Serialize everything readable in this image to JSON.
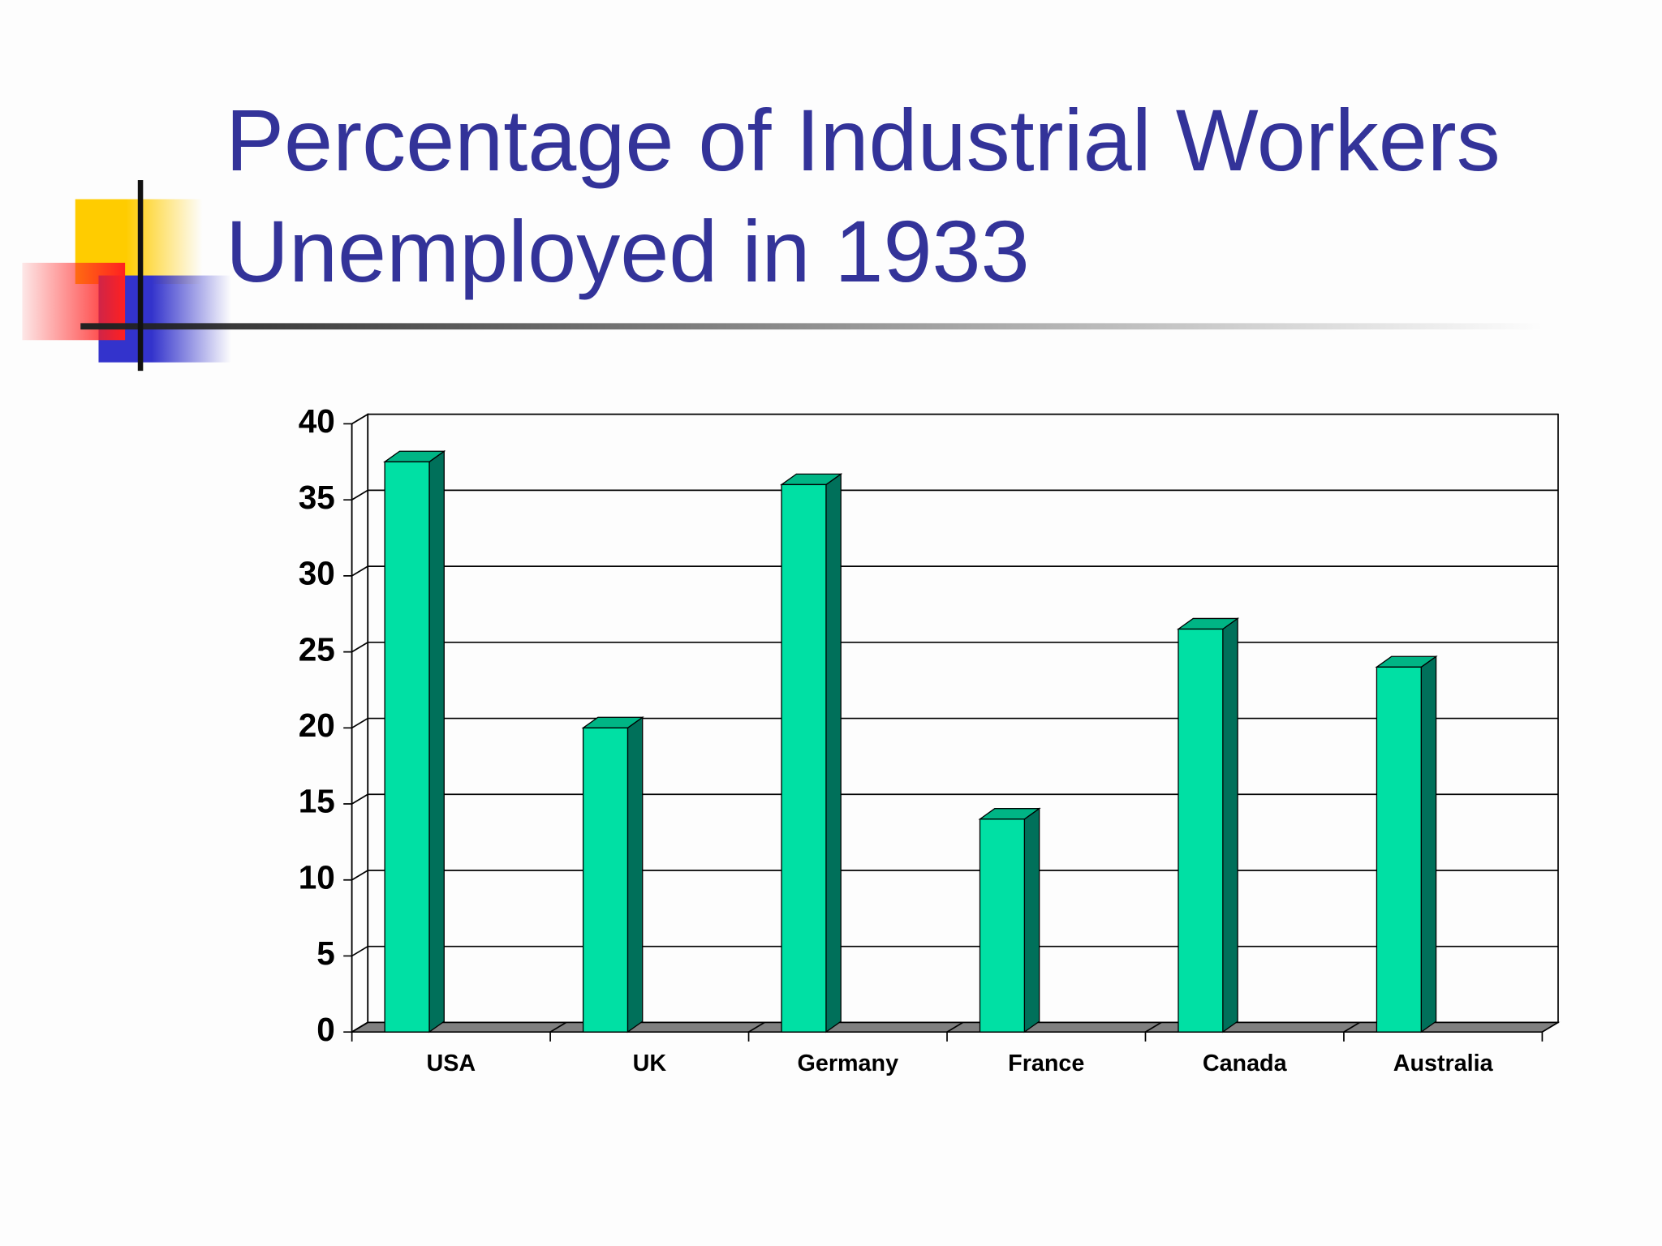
{
  "chart_data": {
    "type": "bar3d",
    "title": "Percentage of Industrial Workers Unemployed in 1933",
    "categories": [
      "USA",
      "UK",
      "Germany",
      "France",
      "Canada",
      "Australia"
    ],
    "values": [
      37.5,
      20,
      36,
      14,
      26.5,
      24
    ],
    "color": "#00e0a4",
    "ylim": [
      0,
      40
    ],
    "yticks": [
      0,
      5,
      10,
      15,
      20,
      25,
      30,
      35,
      40
    ],
    "grid": true
  }
}
